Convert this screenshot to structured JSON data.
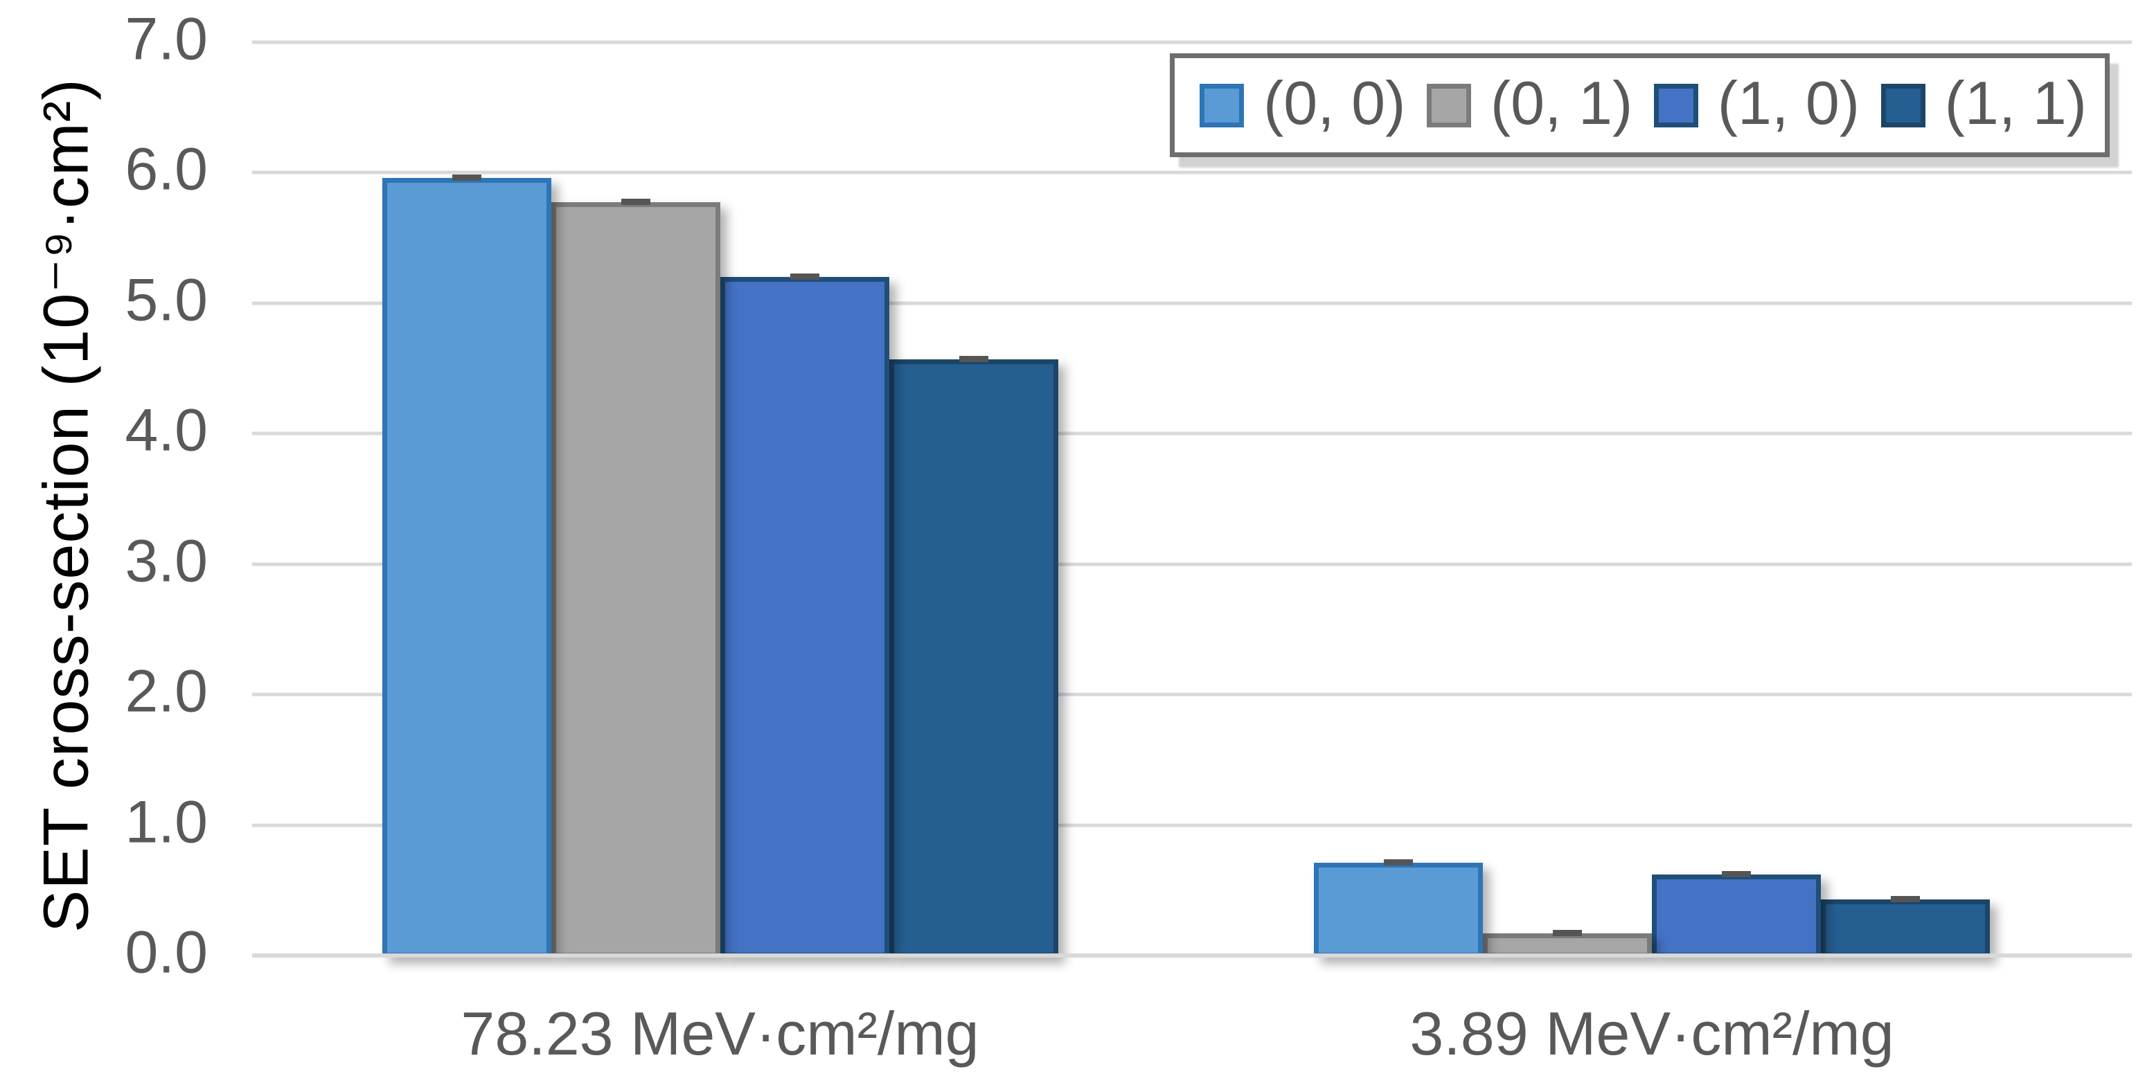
{
  "chart_data": {
    "type": "bar",
    "title": "",
    "categories": [
      "78.23 MeV·cm²/mg",
      "3.89 MeV·cm²/mg"
    ],
    "series": [
      {
        "name": "(0, 0)",
        "values": [
          5.96,
          0.71
        ],
        "fill": "#5B9BD5",
        "border": "#2E75B6"
      },
      {
        "name": "(0, 1)",
        "values": [
          5.77,
          0.17
        ],
        "fill": "#A6A6A6",
        "border": "#7B7B7B"
      },
      {
        "name": "(1, 0)",
        "values": [
          5.2,
          0.62
        ],
        "fill": "#4472C4",
        "border": "#1F4E79"
      },
      {
        "name": "(1, 1)",
        "values": [
          4.57,
          0.43
        ],
        "fill": "#255E91",
        "border": "#1C4568"
      }
    ],
    "error_bars": {
      "visible": true,
      "approx_half_range": 0.03,
      "color": "#555555"
    },
    "xlabel": "",
    "ylabel": "SET cross-section (10⁻⁹·cm²)",
    "ylim": [
      0,
      7
    ],
    "ytick_labels": [
      "0.0",
      "1.0",
      "2.0",
      "3.0",
      "4.0",
      "5.0",
      "6.0",
      "7.0"
    ],
    "grid": true,
    "legend_position": "top-right",
    "colors": {
      "text": "#595959",
      "gridline": "#D9D9D9",
      "baseline": "#D9D9D9",
      "legend_border": "#6E6E6E",
      "background": "#FFFFFF"
    }
  }
}
